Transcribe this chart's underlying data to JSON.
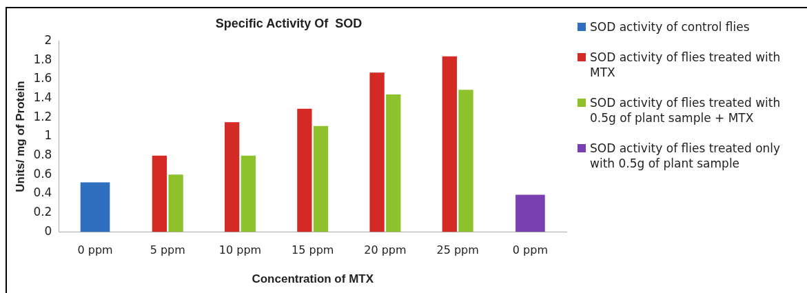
{
  "chart_data": {
    "type": "bar",
    "title": "Specific Activity Of  SOD",
    "xlabel": "Concentration of MTX",
    "ylabel": "Units/ mg of Protein",
    "categories": [
      "0 ppm",
      "5 ppm",
      "10 ppm",
      "15 ppm",
      "20 ppm",
      "25 ppm",
      "0 ppm"
    ],
    "series": [
      {
        "name": " SOD activity of control flies",
        "color": "#2e6fc0",
        "values": [
          0.52,
          null,
          null,
          null,
          null,
          null,
          null
        ]
      },
      {
        "name": "SOD activity of flies treated with MTX",
        "color": "#d42a26",
        "values": [
          null,
          0.8,
          1.15,
          1.29,
          1.67,
          1.84,
          null
        ]
      },
      {
        "name": "SOD activity of flies treated with 0.5g of plant sample + MTX",
        "color": "#8dc22c",
        "values": [
          null,
          0.6,
          0.8,
          1.11,
          1.44,
          1.49,
          null
        ]
      },
      {
        "name": "SOD activity of flies treated only with 0.5g of plant sample",
        "color": "#7a3fb0",
        "values": [
          null,
          null,
          null,
          null,
          null,
          null,
          0.39
        ]
      }
    ],
    "ylim": [
      0,
      2
    ],
    "yticks": [
      0,
      0.2,
      0.4,
      0.6,
      0.8,
      1,
      1.2,
      1.4,
      1.6,
      1.8,
      2
    ],
    "grid": false,
    "legend": "right"
  }
}
